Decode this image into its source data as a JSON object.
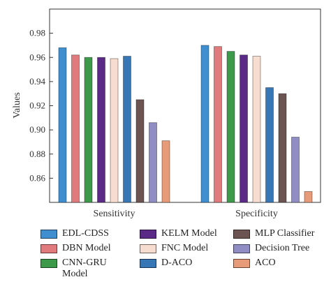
{
  "chart_data": {
    "type": "bar",
    "categories": [
      "Sensitivity",
      "Specificity"
    ],
    "ylabel": "Values",
    "xlabel": "",
    "ylim": [
      0.84,
      1.0
    ],
    "yticks": [
      "0.86",
      "0.88",
      "0.90",
      "0.92",
      "0.94",
      "0.96",
      "0.98"
    ],
    "legend_position": "bottom",
    "grid": false,
    "series": [
      {
        "name": "EDL-CDSS",
        "color": "#3f8fd0",
        "values": [
          0.968,
          0.97
        ]
      },
      {
        "name": "DBN Model",
        "color": "#e07a7d",
        "values": [
          0.962,
          0.969
        ]
      },
      {
        "name": "CNN-GRU Model",
        "color": "#3d9a4b",
        "values": [
          0.96,
          0.965
        ]
      },
      {
        "name": "KELM Model",
        "color": "#5a2a86",
        "values": [
          0.96,
          0.962
        ]
      },
      {
        "name": "FNC Model",
        "color": "#f7ddd0",
        "values": [
          0.959,
          0.961
        ]
      },
      {
        "name": "D-ACO",
        "color": "#3877b6",
        "values": [
          0.961,
          0.935
        ]
      },
      {
        "name": "MLP Classifier",
        "color": "#6b5452",
        "values": [
          0.925,
          0.93
        ]
      },
      {
        "name": "Decision Tree",
        "color": "#8f8dc4",
        "values": [
          0.906,
          0.894
        ]
      },
      {
        "name": "ACO",
        "color": "#e79b79",
        "values": [
          0.891,
          0.849
        ]
      }
    ]
  }
}
